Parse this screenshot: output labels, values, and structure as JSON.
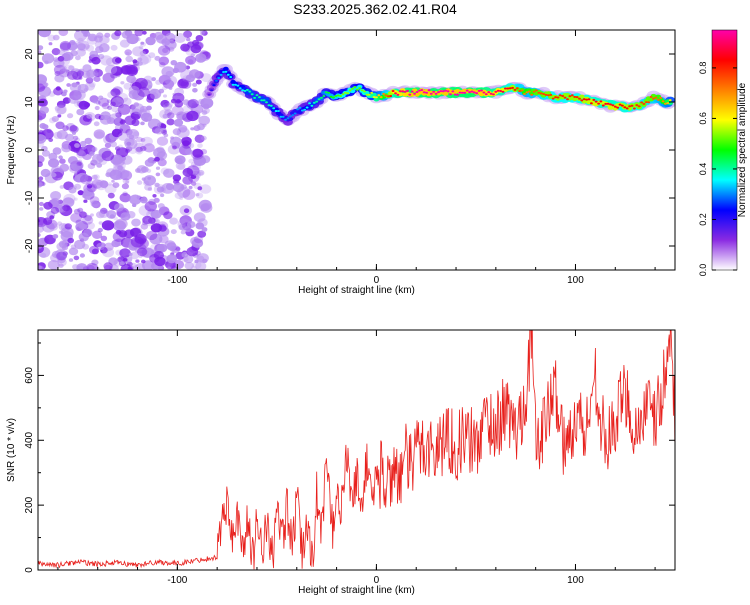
{
  "figure": {
    "title": "S233.2025.362.02.41.R04"
  },
  "chart_data": [
    {
      "type": "heatmap",
      "title": "S233.2025.362.02.41.R04",
      "xlabel": "Height of straight line (km)",
      "ylabel": "Frequency (Hz)",
      "xlim": [
        -170,
        150
      ],
      "ylim": [
        -25,
        25
      ],
      "xticks": [
        -100,
        0,
        100
      ],
      "xtick_labels": [
        "-100",
        "0",
        "100"
      ],
      "yticks": [
        -20,
        -10,
        0,
        10,
        20
      ],
      "ytick_labels": [
        "-20",
        "-10",
        "0",
        "10",
        "20"
      ],
      "noise_region": {
        "x_range": [
          -170,
          -85
        ],
        "y_range": [
          -25,
          25
        ],
        "amplitude_range": [
          0.05,
          0.2
        ]
      },
      "ridge": {
        "x": [
          -84,
          -80,
          -76,
          -72,
          -68,
          -64,
          -60,
          -55,
          -50,
          -45,
          -40,
          -35,
          -30,
          -25,
          -20,
          -15,
          -10,
          -5,
          0,
          10,
          20,
          30,
          40,
          50,
          60,
          70,
          75,
          80,
          90,
          100,
          110,
          120,
          130,
          140,
          145,
          148
        ],
        "y": [
          12,
          15,
          17,
          14,
          13,
          12,
          11,
          10,
          8,
          6,
          8,
          9,
          10,
          12,
          11,
          12,
          13,
          12,
          11,
          12,
          12,
          12,
          12,
          12,
          12,
          13,
          12,
          12,
          11,
          11,
          10,
          9,
          9,
          11,
          10,
          10
        ],
        "amplitude": [
          0.15,
          0.3,
          0.35,
          0.35,
          0.35,
          0.4,
          0.4,
          0.4,
          0.35,
          0.3,
          0.3,
          0.35,
          0.4,
          0.45,
          0.5,
          0.55,
          0.5,
          0.55,
          0.6,
          0.9,
          0.95,
          0.95,
          0.95,
          0.95,
          0.9,
          0.8,
          0.7,
          0.75,
          0.8,
          0.8,
          0.85,
          0.85,
          0.8,
          0.75,
          0.7,
          0.6
        ]
      },
      "colorbar": {
        "label": "Normalized spectral amplitude",
        "range": [
          0.0,
          0.95
        ],
        "ticks": [
          0.0,
          0.2,
          0.4,
          0.6,
          0.8
        ],
        "tick_labels": [
          "0.0",
          "0.2",
          "0.4",
          "0.6",
          "0.8"
        ],
        "colors": [
          "#ffffff",
          "#8a2be2",
          "#0000ff",
          "#00ffff",
          "#00ff00",
          "#ffff00",
          "#ff8000",
          "#ff0000",
          "#ff00aa"
        ]
      }
    },
    {
      "type": "line",
      "title": "",
      "xlabel": "Height of straight line (km)",
      "ylabel": "SNR (10 * v/v)",
      "xlim": [
        -170,
        150
      ],
      "ylim": [
        0,
        740
      ],
      "xticks": [
        -100,
        0,
        100
      ],
      "xtick_labels": [
        "-100",
        "0",
        "100"
      ],
      "yticks": [
        0,
        200,
        400,
        600
      ],
      "ytick_labels": [
        "0",
        "200",
        "400",
        "600"
      ],
      "color": "#e8201c",
      "series": [
        {
          "name": "SNR",
          "x": [
            -170,
            -160,
            -150,
            -140,
            -130,
            -120,
            -110,
            -100,
            -90,
            -80,
            -78,
            -75,
            -73,
            -70,
            -68,
            -65,
            -62,
            -60,
            -57,
            -55,
            -52,
            -50,
            -47,
            -45,
            -42,
            -40,
            -37,
            -35,
            -32,
            -30,
            -28,
            -25,
            -22,
            -20,
            -18,
            -15,
            -12,
            -10,
            -8,
            -5,
            -2,
            0,
            3,
            6,
            9,
            12,
            15,
            18,
            20,
            25,
            30,
            35,
            40,
            45,
            50,
            55,
            60,
            65,
            70,
            75,
            78,
            80,
            85,
            90,
            95,
            100,
            105,
            110,
            115,
            120,
            125,
            130,
            135,
            140,
            145,
            148,
            150
          ],
          "values": [
            20,
            15,
            25,
            18,
            22,
            15,
            25,
            20,
            30,
            40,
            150,
            200,
            100,
            180,
            60,
            140,
            40,
            160,
            80,
            130,
            50,
            170,
            90,
            200,
            60,
            220,
            40,
            150,
            30,
            250,
            80,
            330,
            120,
            280,
            160,
            350,
            200,
            300,
            180,
            330,
            240,
            280,
            300,
            260,
            330,
            280,
            350,
            300,
            380,
            390,
            360,
            420,
            380,
            410,
            380,
            470,
            440,
            500,
            420,
            540,
            740,
            380,
            460,
            560,
            350,
            490,
            420,
            600,
            380,
            450,
            560,
            420,
            500,
            460,
            590,
            740,
            480
          ]
        }
      ]
    }
  ]
}
